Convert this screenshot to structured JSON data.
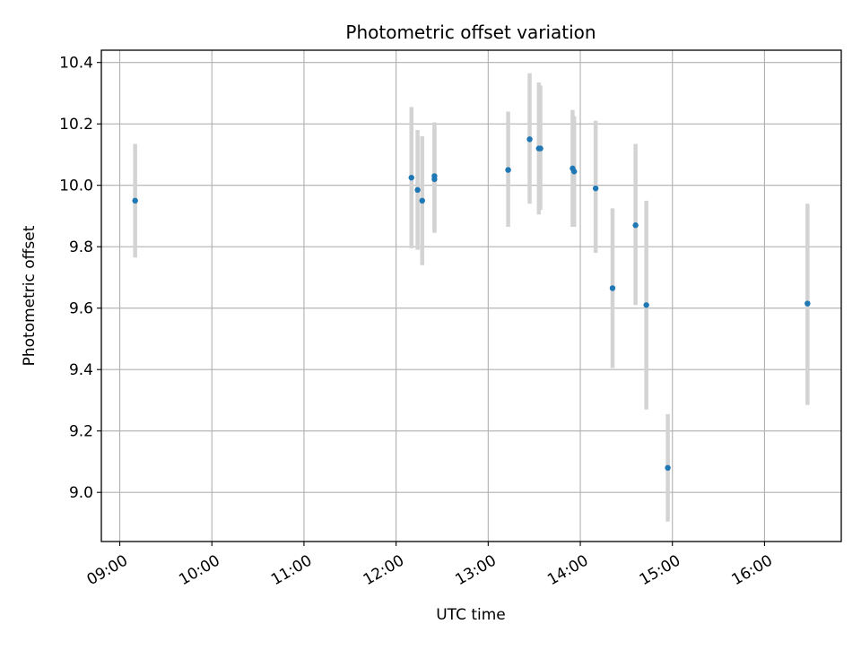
{
  "chart_data": {
    "type": "scatter",
    "title": "Photometric offset variation",
    "xlabel": "UTC time",
    "ylabel": "Photometric offset",
    "xlim": [
      "08:48",
      "16:50"
    ],
    "ylim": [
      8.84,
      10.44
    ],
    "x_ticks": [
      "09:00",
      "10:00",
      "11:00",
      "12:00",
      "13:00",
      "14:00",
      "15:00",
      "16:00"
    ],
    "y_ticks": [
      "9.0",
      "9.2",
      "9.4",
      "9.6",
      "9.8",
      "10.0",
      "10.2",
      "10.4"
    ],
    "grid": true,
    "marker_color": "#1f77b4",
    "errorbar_color": "#d3d3d3",
    "points": [
      {
        "time": "09:10",
        "y": 9.95,
        "low": 9.765,
        "high": 10.135
      },
      {
        "time": "12:10",
        "y": 10.025,
        "low": 9.795,
        "high": 10.255
      },
      {
        "time": "12:14",
        "y": 9.985,
        "low": 9.79,
        "high": 10.18
      },
      {
        "time": "12:17",
        "y": 9.95,
        "low": 9.74,
        "high": 10.16
      },
      {
        "time": "12:25",
        "y": 10.03,
        "low": 9.85,
        "high": 10.205
      },
      {
        "time": "12:25",
        "y": 10.02,
        "low": 9.845,
        "high": 10.19
      },
      {
        "time": "13:13",
        "y": 10.05,
        "low": 9.865,
        "high": 10.24
      },
      {
        "time": "13:27",
        "y": 10.15,
        "low": 9.94,
        "high": 10.365
      },
      {
        "time": "13:33",
        "y": 10.12,
        "low": 9.905,
        "high": 10.335
      },
      {
        "time": "13:34",
        "y": 10.12,
        "low": 9.92,
        "high": 10.325
      },
      {
        "time": "13:55",
        "y": 10.055,
        "low": 9.865,
        "high": 10.245
      },
      {
        "time": "13:56",
        "y": 10.045,
        "low": 9.865,
        "high": 10.225
      },
      {
        "time": "14:10",
        "y": 9.99,
        "low": 9.78,
        "high": 10.21
      },
      {
        "time": "14:21",
        "y": 9.665,
        "low": 9.405,
        "high": 9.925
      },
      {
        "time": "14:36",
        "y": 9.87,
        "low": 9.61,
        "high": 10.135
      },
      {
        "time": "14:43",
        "y": 9.61,
        "low": 9.27,
        "high": 9.95
      },
      {
        "time": "14:57",
        "y": 9.08,
        "low": 8.905,
        "high": 9.255
      },
      {
        "time": "16:28",
        "y": 9.615,
        "low": 9.285,
        "high": 9.94
      }
    ]
  }
}
